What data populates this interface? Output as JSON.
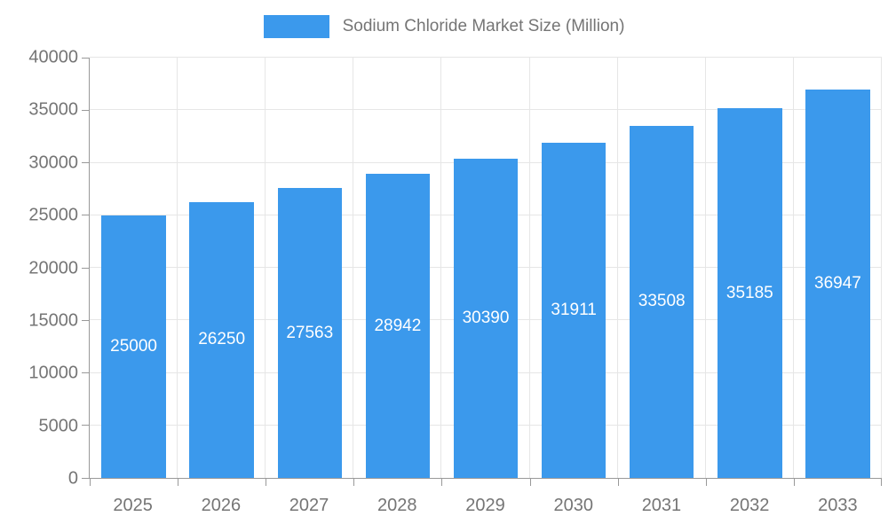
{
  "chart_data": {
    "type": "bar",
    "title": "Sodium Chloride Market Size (Million)",
    "legend": [
      "Sodium Chloride Market Size (Million)"
    ],
    "legend_position": "top-center",
    "categories": [
      "2025",
      "2026",
      "2027",
      "2028",
      "2029",
      "2030",
      "2031",
      "2032",
      "2033"
    ],
    "series": [
      {
        "name": "Sodium Chloride Market Size (Million)",
        "values": [
          25000,
          26250,
          27563,
          28942,
          30390,
          31911,
          33508,
          35185,
          36947
        ]
      }
    ],
    "value_labels_shown": true,
    "xlabel": "",
    "ylabel": "",
    "ylim": [
      0,
      40000
    ],
    "ytick_step": 5000,
    "ytick_labels": [
      "0",
      "5000",
      "10000",
      "15000",
      "20000",
      "25000",
      "30000",
      "35000",
      "40000"
    ],
    "grid": true
  },
  "colors": {
    "bar": "#3B99EC",
    "grid": "#E6E6E6",
    "axis": "#999999",
    "text": "#757575",
    "value_label": "#FFFFFF",
    "background": "#FFFFFF"
  }
}
